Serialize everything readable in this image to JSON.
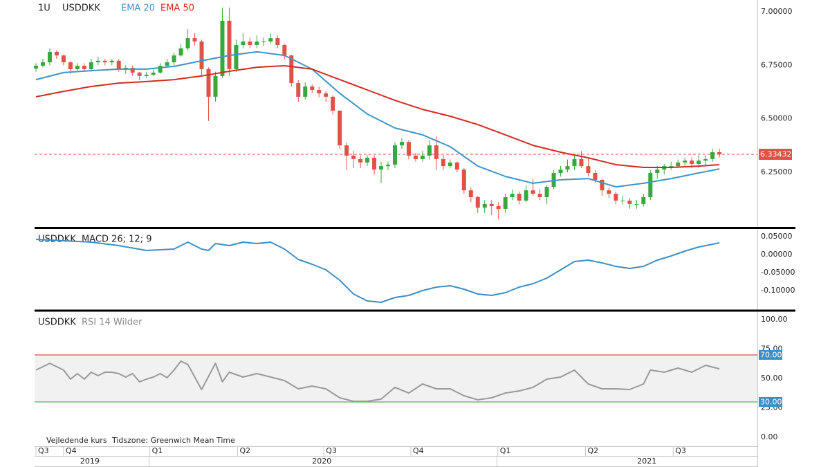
{
  "chart_data": [
    {
      "type": "candlestick",
      "interval": "1U",
      "symbol": "USDDKK",
      "up_color": "#38a83c",
      "down_color": "#df5346",
      "open": [
        6.735,
        6.748,
        6.764,
        6.813,
        6.796,
        6.764,
        6.732,
        6.748,
        6.732,
        6.764,
        6.771,
        6.764,
        6.771,
        6.732,
        6.738,
        6.716,
        6.7,
        6.706,
        6.716,
        6.748,
        6.764,
        6.796,
        6.829,
        6.877,
        6.861,
        6.732,
        6.603,
        6.7,
        6.958,
        6.732,
        6.845,
        6.861,
        6.845,
        6.861,
        6.861,
        6.877,
        6.845,
        6.796,
        6.667,
        6.603,
        6.651,
        6.635,
        6.619,
        6.603,
        6.538,
        6.376,
        6.328,
        6.312,
        6.296,
        6.318,
        6.263,
        6.279,
        6.286,
        6.376,
        6.392,
        6.328,
        6.312,
        6.328,
        6.376,
        6.312,
        6.279,
        6.296,
        6.263,
        6.166,
        6.134,
        6.085,
        6.102,
        6.092,
        6.079,
        6.134,
        6.15,
        6.118,
        6.166,
        6.15,
        6.134,
        6.182,
        6.247,
        6.263,
        6.279,
        6.312,
        6.279,
        6.247,
        6.215,
        6.166,
        6.15,
        6.118,
        6.118,
        6.102,
        6.102,
        6.134,
        6.247,
        6.263,
        6.279,
        6.279,
        6.296,
        6.305,
        6.289,
        6.305,
        6.312,
        6.344
      ],
      "high": [
        6.76,
        6.78,
        6.83,
        6.82,
        6.8,
        6.77,
        6.76,
        6.76,
        6.78,
        6.79,
        6.78,
        6.78,
        6.78,
        6.75,
        6.75,
        6.72,
        6.72,
        6.73,
        6.76,
        6.78,
        6.81,
        6.85,
        6.92,
        6.9,
        6.87,
        6.74,
        6.72,
        7.02,
        7.02,
        6.87,
        6.9,
        6.88,
        6.89,
        6.88,
        6.9,
        6.89,
        6.85,
        6.8,
        6.68,
        6.67,
        6.66,
        6.65,
        6.63,
        6.61,
        6.54,
        6.39,
        6.35,
        6.33,
        6.33,
        6.33,
        6.3,
        6.3,
        6.39,
        6.41,
        6.4,
        6.34,
        6.35,
        6.4,
        6.42,
        6.33,
        6.31,
        6.3,
        6.27,
        6.18,
        6.14,
        6.12,
        6.12,
        6.11,
        6.15,
        6.17,
        6.16,
        6.19,
        6.22,
        6.17,
        6.19,
        6.26,
        6.28,
        6.31,
        6.33,
        6.35,
        6.32,
        6.26,
        6.22,
        6.18,
        6.16,
        6.14,
        6.13,
        6.12,
        6.15,
        6.26,
        6.28,
        6.29,
        6.3,
        6.31,
        6.32,
        6.32,
        6.33,
        6.33,
        6.36,
        6.36
      ],
      "low": [
        6.72,
        6.74,
        6.75,
        6.78,
        6.75,
        6.71,
        6.72,
        6.72,
        6.72,
        6.75,
        6.75,
        6.75,
        6.72,
        6.71,
        6.7,
        6.68,
        6.69,
        6.7,
        6.71,
        6.74,
        6.75,
        6.79,
        6.82,
        6.84,
        6.7,
        6.49,
        6.58,
        6.69,
        6.7,
        6.72,
        6.83,
        6.83,
        6.83,
        6.84,
        6.85,
        6.83,
        6.78,
        6.65,
        6.58,
        6.59,
        6.62,
        6.6,
        6.58,
        6.52,
        6.36,
        6.26,
        6.27,
        6.27,
        6.28,
        6.24,
        6.2,
        6.26,
        6.27,
        6.36,
        6.31,
        6.3,
        6.3,
        6.31,
        6.26,
        6.26,
        6.27,
        6.25,
        6.15,
        6.11,
        6.06,
        6.06,
        6.05,
        6.03,
        6.06,
        6.12,
        6.1,
        6.11,
        6.14,
        6.12,
        6.1,
        6.17,
        6.23,
        6.25,
        6.26,
        6.27,
        6.23,
        6.2,
        6.14,
        6.13,
        6.1,
        6.1,
        6.08,
        6.08,
        6.09,
        6.12,
        6.22,
        6.24,
        6.26,
        6.27,
        6.28,
        6.27,
        6.27,
        6.28,
        6.3,
        6.32
      ],
      "close": [
        6.748,
        6.764,
        6.813,
        6.796,
        6.764,
        6.732,
        6.748,
        6.732,
        6.764,
        6.771,
        6.764,
        6.771,
        6.732,
        6.738,
        6.716,
        6.7,
        6.706,
        6.716,
        6.748,
        6.764,
        6.796,
        6.829,
        6.877,
        6.861,
        6.732,
        6.603,
        6.7,
        6.958,
        6.732,
        6.845,
        6.861,
        6.845,
        6.861,
        6.861,
        6.877,
        6.845,
        6.796,
        6.667,
        6.603,
        6.651,
        6.635,
        6.619,
        6.603,
        6.538,
        6.376,
        6.328,
        6.312,
        6.296,
        6.318,
        6.263,
        6.279,
        6.286,
        6.376,
        6.392,
        6.328,
        6.312,
        6.328,
        6.376,
        6.312,
        6.279,
        6.296,
        6.263,
        6.166,
        6.134,
        6.085,
        6.102,
        6.092,
        6.079,
        6.134,
        6.15,
        6.118,
        6.166,
        6.15,
        6.134,
        6.182,
        6.247,
        6.263,
        6.279,
        6.312,
        6.279,
        6.247,
        6.215,
        6.166,
        6.15,
        6.118,
        6.118,
        6.102,
        6.102,
        6.134,
        6.247,
        6.263,
        6.279,
        6.279,
        6.296,
        6.305,
        6.289,
        6.305,
        6.312,
        6.344,
        6.334
      ],
      "series": [
        {
          "name": "EMA 20",
          "color": "#3d94c9",
          "x": [
            0,
            4,
            8,
            12,
            16,
            20,
            24,
            28,
            32,
            36,
            40,
            44,
            48,
            52,
            56,
            60,
            64,
            68,
            72,
            76,
            80,
            84,
            88,
            92,
            96,
            99
          ],
          "values": [
            6.683,
            6.716,
            6.725,
            6.732,
            6.732,
            6.745,
            6.771,
            6.796,
            6.813,
            6.796,
            6.732,
            6.619,
            6.522,
            6.457,
            6.425,
            6.37,
            6.279,
            6.231,
            6.199,
            6.215,
            6.221,
            6.182,
            6.199,
            6.221,
            6.247,
            6.266
          ]
        },
        {
          "name": "EMA 50",
          "color": "#d42a22",
          "x": [
            0,
            4,
            8,
            12,
            16,
            20,
            24,
            28,
            32,
            36,
            40,
            44,
            48,
            52,
            56,
            60,
            64,
            68,
            72,
            76,
            80,
            84,
            88,
            92,
            96,
            99
          ],
          "values": [
            6.603,
            6.628,
            6.651,
            6.667,
            6.674,
            6.683,
            6.7,
            6.722,
            6.741,
            6.748,
            6.732,
            6.683,
            6.635,
            6.586,
            6.544,
            6.512,
            6.473,
            6.425,
            6.376,
            6.344,
            6.318,
            6.286,
            6.273,
            6.273,
            6.279,
            6.286
          ]
        }
      ],
      "last": 6.33432,
      "last_color": "#df5346",
      "xlim": [
        -0.2,
        104.5
      ],
      "ylim": [
        5.995,
        7.055
      ],
      "yticks": [
        {
          "value": 7,
          "label": "7.00000"
        },
        {
          "value": 6.75,
          "label": "6.75000"
        },
        {
          "value": 6.5,
          "label": "6.50000"
        },
        {
          "value": 6.25,
          "label": "6.25000"
        }
      ],
      "xticks": [
        {
          "value": 0,
          "label": "Q3"
        },
        {
          "value": 4,
          "label": "Q4"
        },
        {
          "value": 16.5,
          "label": "Q1"
        },
        {
          "value": 29.2,
          "label": "Q2"
        },
        {
          "value": 41.7,
          "label": "Q3"
        },
        {
          "value": 54.3,
          "label": "Q4"
        },
        {
          "value": 66.9,
          "label": "Q1"
        },
        {
          "value": 79.6,
          "label": "Q2"
        },
        {
          "value": 92.3,
          "label": "Q3"
        }
      ],
      "years": [
        {
          "value": 7.8,
          "label": "2019"
        },
        {
          "value": 41.4,
          "label": "2020"
        },
        {
          "value": 88.5,
          "label": "2021"
        }
      ],
      "footer": [
        "Vejledende kurs",
        "Tidszone: Greenwich Mean Time"
      ]
    },
    {
      "type": "line",
      "symbol": "USDDKK",
      "title": "MACD 26; 12; 9",
      "series": [
        {
          "color": "#3b8fc4",
          "x": [
            0,
            4,
            8,
            12,
            16,
            20,
            22,
            24,
            25,
            26,
            28,
            30,
            32,
            34,
            36,
            38,
            40,
            42,
            44,
            46,
            48,
            50,
            52,
            54,
            56,
            58,
            60,
            62,
            64,
            66,
            68,
            70,
            72,
            74,
            76,
            78,
            80,
            82,
            84,
            86,
            88,
            90,
            92,
            94,
            96,
            99
          ],
          "values": [
            0.0423,
            0.0385,
            0.0346,
            0.025,
            0.0115,
            0.0154,
            0.0346,
            0.0154,
            0.0115,
            0.0308,
            0.025,
            0.0346,
            0.0308,
            0.0346,
            0.0154,
            -0.0135,
            -0.0269,
            -0.0423,
            -0.0712,
            -0.1096,
            -0.1288,
            -0.1327,
            -0.1192,
            -0.1135,
            -0.1,
            -0.0904,
            -0.0865,
            -0.0962,
            -0.1096,
            -0.1135,
            -0.1058,
            -0.0904,
            -0.0808,
            -0.0654,
            -0.0423,
            -0.0192,
            -0.0154,
            -0.0231,
            -0.0327,
            -0.0385,
            -0.0327,
            -0.0154,
            -0.0038,
            0.0096,
            0.0212,
            0.0327
          ]
        }
      ],
      "xlim": [
        -0.2,
        104.5
      ],
      "ylim": [
        -0.1538,
        0.0712
      ],
      "yticks": [
        {
          "value": 0.05,
          "label": "0.05000"
        },
        {
          "value": 0,
          "label": "0.00000"
        },
        {
          "value": -0.05,
          "label": "-0.05000"
        },
        {
          "value": -0.1,
          "label": "-0.10000"
        }
      ]
    },
    {
      "type": "line",
      "symbol": "USDDKK",
      "title": "RSI 14 Wilder",
      "series": [
        {
          "color": "#999999",
          "x": [
            0,
            2,
            4,
            5,
            6,
            7,
            8,
            9,
            10,
            11,
            12,
            13,
            14,
            15,
            16,
            17,
            18,
            19,
            20,
            21,
            22,
            24,
            26,
            27,
            28,
            30,
            32,
            34,
            36,
            38,
            40,
            42,
            44,
            46,
            48,
            50,
            52,
            54,
            56,
            58,
            60,
            62,
            64,
            66,
            68,
            70,
            72,
            74,
            76,
            78,
            80,
            82,
            84,
            86,
            88,
            89,
            91,
            93,
            95,
            97,
            99
          ],
          "values": [
            57.1,
            62.9,
            57.1,
            49.4,
            54.1,
            49.4,
            55.3,
            52.4,
            55.3,
            55.3,
            54.1,
            51.2,
            54.1,
            47.1,
            49.4,
            51.2,
            54.1,
            50.6,
            57.1,
            64.7,
            61.8,
            40.6,
            62.9,
            47.1,
            55.3,
            51.2,
            54.1,
            51.2,
            48.2,
            41.2,
            43.5,
            41.2,
            33.5,
            30.6,
            30.6,
            32.4,
            42.4,
            37.6,
            45.3,
            41.2,
            41.2,
            35.3,
            31.8,
            33.5,
            37.6,
            39.4,
            42.4,
            49.4,
            51.2,
            57.1,
            45.3,
            41.2,
            41.2,
            40.6,
            45.3,
            57.1,
            55.3,
            58.8,
            55.3,
            61.2,
            58.2
          ]
        }
      ],
      "levels": [
        {
          "value": 70,
          "label": "70.00",
          "color": "#d42a22"
        },
        {
          "value": 30,
          "label": "30.00",
          "color": "#2ca02c"
        }
      ],
      "level_label_color": "#3b8fc4",
      "xlim": [
        -0.2,
        104.5
      ],
      "ylim": [
        -7.65,
        107.06
      ],
      "yticks": [
        {
          "value": 100,
          "label": "100.00"
        },
        {
          "value": 75,
          "label": "75.00"
        },
        {
          "value": 50,
          "label": "50.00"
        },
        {
          "value": 25,
          "label": "25.00"
        },
        {
          "value": 0,
          "label": "0.00"
        }
      ]
    }
  ]
}
